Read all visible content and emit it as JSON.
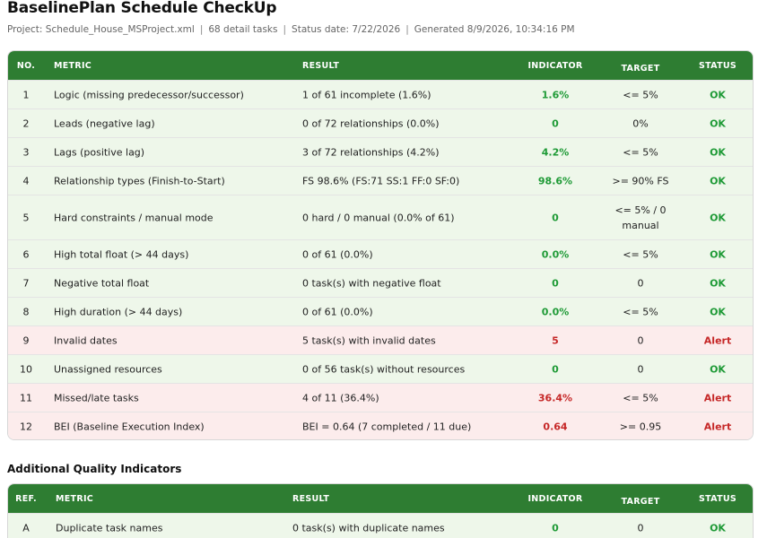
{
  "page": {
    "title": "BaselinePlan Schedule CheckUp",
    "project": "Project: Schedule_House_MSProject.xml",
    "tasks": "68 detail tasks",
    "status_date": "Status date: 7/22/2026",
    "generated": "Generated 8/9/2026, 10:34:16 PM",
    "separator": "|"
  },
  "colors": {
    "header": "#2e7d32",
    "ok": "#1e9a36",
    "alert": "#c62828",
    "row_ok_bg": "#eef7ea",
    "row_alert_bg": "#fcecec"
  },
  "main_table": {
    "headers": {
      "no": "NO.",
      "metric": "METRIC",
      "result": "RESULT",
      "indicator": "INDICATOR",
      "target": "TARGET",
      "status": "STATUS"
    },
    "rows": [
      {
        "no": "1",
        "metric": "Logic (missing predecessor/successor)",
        "result": "1 of 61 incomplete (1.6%)",
        "indicator": "1.6%",
        "target": "<= 5%",
        "status": "OK"
      },
      {
        "no": "2",
        "metric": "Leads (negative lag)",
        "result": "0 of 72 relationships (0.0%)",
        "indicator": "0",
        "target": "0%",
        "status": "OK"
      },
      {
        "no": "3",
        "metric": "Lags (positive lag)",
        "result": "3 of 72 relationships (4.2%)",
        "indicator": "4.2%",
        "target": "<= 5%",
        "status": "OK"
      },
      {
        "no": "4",
        "metric": "Relationship types (Finish-to-Start)",
        "result": "FS 98.6% (FS:71 SS:1 FF:0 SF:0)",
        "indicator": "98.6%",
        "target": ">= 90% FS",
        "status": "OK"
      },
      {
        "no": "5",
        "metric": "Hard constraints / manual mode",
        "result": "0 hard / 0 manual (0.0% of 61)",
        "indicator": "0",
        "target": "<= 5% / 0 manual",
        "status": "OK"
      },
      {
        "no": "6",
        "metric": "High total float (> 44 days)",
        "result": "0 of 61 (0.0%)",
        "indicator": "0.0%",
        "target": "<= 5%",
        "status": "OK"
      },
      {
        "no": "7",
        "metric": "Negative total float",
        "result": "0 task(s) with negative float",
        "indicator": "0",
        "target": "0",
        "status": "OK"
      },
      {
        "no": "8",
        "metric": "High duration (> 44 days)",
        "result": "0 of 61 (0.0%)",
        "indicator": "0.0%",
        "target": "<= 5%",
        "status": "OK"
      },
      {
        "no": "9",
        "metric": "Invalid dates",
        "result": "5 task(s) with invalid dates",
        "indicator": "5",
        "target": "0",
        "status": "Alert"
      },
      {
        "no": "10",
        "metric": "Unassigned resources",
        "result": "0 of 56 task(s) without resources",
        "indicator": "0",
        "target": "0",
        "status": "OK"
      },
      {
        "no": "11",
        "metric": "Missed/late tasks",
        "result": "4 of 11 (36.4%)",
        "indicator": "36.4%",
        "target": "<= 5%",
        "status": "Alert"
      },
      {
        "no": "12",
        "metric": "BEI (Baseline Execution Index)",
        "result": "BEI = 0.64 (7 completed / 11 due)",
        "indicator": "0.64",
        "target": ">= 0.95",
        "status": "Alert"
      }
    ]
  },
  "additional": {
    "title": "Additional Quality Indicators",
    "headers": {
      "no": "REF.",
      "metric": "METRIC",
      "result": "RESULT",
      "indicator": "INDICATOR",
      "target": "TARGET",
      "status": "STATUS"
    },
    "rows": [
      {
        "no": "A",
        "metric": "Duplicate task names",
        "result": "0 task(s) with duplicate names",
        "indicator": "0",
        "target": "0",
        "status": "OK"
      }
    ]
  }
}
